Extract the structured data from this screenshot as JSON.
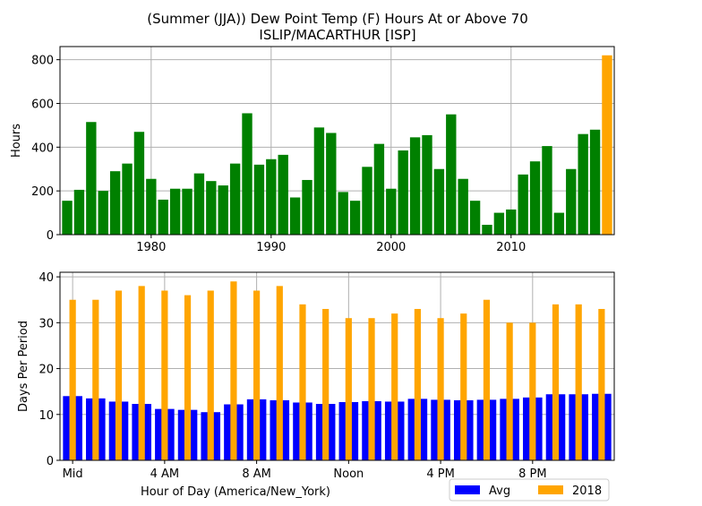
{
  "title_line1": "(Summer (JJA)) Dew Point Temp (F) Hours At or Above 70",
  "title_line2": "ISLIP/MACARTHUR [ISP]",
  "chart_data": [
    {
      "type": "bar",
      "ylabel": "Hours",
      "xlabel": "",
      "xlim": [
        1972.4,
        2018.6
      ],
      "ylim": [
        0,
        860
      ],
      "grid": true,
      "xticks": [
        1980,
        1990,
        2000,
        2010
      ],
      "xtick_labels": [
        "1980",
        "1990",
        "2000",
        "2010"
      ],
      "yticks": [
        0,
        200,
        400,
        600,
        800
      ],
      "ytick_labels": [
        "0",
        "200",
        "400",
        "600",
        "800"
      ],
      "x": [
        1973,
        1974,
        1975,
        1976,
        1977,
        1978,
        1979,
        1980,
        1981,
        1982,
        1983,
        1984,
        1985,
        1986,
        1987,
        1988,
        1989,
        1990,
        1991,
        1992,
        1993,
        1994,
        1995,
        1996,
        1997,
        1998,
        1999,
        2000,
        2001,
        2002,
        2003,
        2004,
        2005,
        2006,
        2007,
        2008,
        2009,
        2010,
        2011,
        2012,
        2013,
        2014,
        2015,
        2016,
        2017,
        2018
      ],
      "values": [
        155,
        205,
        515,
        200,
        290,
        325,
        470,
        255,
        160,
        210,
        210,
        280,
        245,
        225,
        325,
        555,
        320,
        345,
        365,
        170,
        250,
        490,
        465,
        195,
        155,
        310,
        415,
        210,
        385,
        445,
        455,
        300,
        550,
        255,
        155,
        45,
        100,
        115,
        275,
        335,
        405,
        100,
        300,
        460,
        480,
        820
      ],
      "colors": {
        "bars": "#008000",
        "highlight": "#ffa500"
      },
      "highlight_x": 2018
    },
    {
      "type": "bar",
      "xlabel": "Hour of Day (America/New_York)",
      "ylabel": "Days Per Period",
      "xlim": [
        -0.55,
        23.55
      ],
      "ylim": [
        0,
        41
      ],
      "grid": true,
      "xticks": [
        0,
        4,
        8,
        12,
        16,
        20
      ],
      "xtick_labels": [
        "Mid",
        "4 AM",
        "8 AM",
        "Noon",
        "4 PM",
        "8 PM"
      ],
      "yticks": [
        0,
        10,
        20,
        30,
        40
      ],
      "ytick_labels": [
        "0",
        "10",
        "20",
        "30",
        "40"
      ],
      "series": [
        {
          "name": "Avg",
          "color": "#0000ff",
          "values": [
            14,
            13.5,
            12.8,
            12.3,
            11.2,
            11,
            10.5,
            12.2,
            13.3,
            13.1,
            12.6,
            12.3,
            12.7,
            12.9,
            12.8,
            13.4,
            13.2,
            13.1,
            13.2,
            13.4,
            13.7,
            14.4,
            14.4,
            14.5
          ]
        },
        {
          "name": "2018",
          "color": "#ffa500",
          "values": [
            35,
            35,
            37,
            38,
            37,
            36,
            37,
            39,
            37,
            38,
            34,
            33,
            31,
            31,
            32,
            33,
            31,
            32,
            35,
            30,
            30,
            34,
            34,
            33
          ]
        }
      ],
      "legend": {
        "position": "bottom-right",
        "entries": [
          "Avg",
          "2018"
        ]
      }
    }
  ]
}
